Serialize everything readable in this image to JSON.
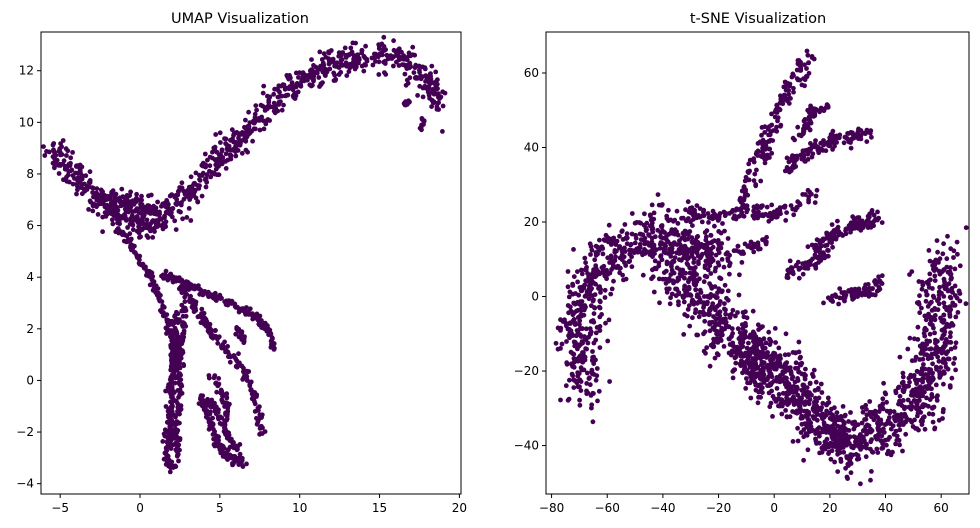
{
  "chart_data": [
    {
      "type": "scatter",
      "title": "UMAP Visualization",
      "xlim": [
        -6.2,
        20.1
      ],
      "ylim": [
        -4.4,
        13.5
      ],
      "xticks": [
        -5,
        0,
        5,
        10,
        15,
        20
      ],
      "yticks": [
        -4,
        -2,
        0,
        2,
        4,
        6,
        8,
        10,
        12
      ],
      "xtick_labels": [
        "−5",
        "0",
        "5",
        "10",
        "15",
        "20"
      ],
      "ytick_labels": [
        "−4",
        "−2",
        "0",
        "2",
        "4",
        "6",
        "8",
        "10",
        "12"
      ],
      "grid": false,
      "marker_color": "#440154",
      "series": [
        {
          "branches": [
            {
              "path": [
                [
                  -5.3,
                  8.9
                ],
                [
                  -4.2,
                  8.0
                ],
                [
                  -3.2,
                  7.5
                ],
                [
                  -2.2,
                  6.8
                ],
                [
                  -1.0,
                  6.4
                ],
                [
                  0.0,
                  6.0
                ],
                [
                  1.0,
                  6.2
                ],
                [
                  2.0,
                  6.7
                ],
                [
                  3.0,
                  7.2
                ],
                [
                  4.0,
                  7.9
                ],
                [
                  5.0,
                  8.6
                ],
                [
                  6.0,
                  9.3
                ],
                [
                  7.0,
                  9.9
                ],
                [
                  8.0,
                  10.5
                ],
                [
                  9.0,
                  11.1
                ],
                [
                  10.0,
                  11.6
                ],
                [
                  11.0,
                  11.9
                ],
                [
                  12.0,
                  12.2
                ],
                [
                  13.0,
                  12.4
                ],
                [
                  14.0,
                  12.5
                ],
                [
                  15.0,
                  12.6
                ],
                [
                  16.0,
                  12.6
                ],
                [
                  17.0,
                  12.2
                ],
                [
                  18.0,
                  11.6
                ],
                [
                  18.6,
                  10.9
                ],
                [
                  18.9,
                  10.4
                ]
              ],
              "n": 900,
              "spread": 0.3
            },
            {
              "path": [
                [
                  -2.2,
                  6.9
                ],
                [
                  -1.0,
                  6.9
                ],
                [
                  0.0,
                  6.8
                ],
                [
                  1.0,
                  6.7
                ]
              ],
              "n": 120,
              "spread": 0.2
            },
            {
              "path": [
                [
                  -1.5,
                  6.0
                ],
                [
                  -0.5,
                  5.2
                ],
                [
                  0.0,
                  4.6
                ],
                [
                  0.8,
                  3.9
                ],
                [
                  1.3,
                  3.0
                ],
                [
                  1.8,
                  2.0
                ],
                [
                  2.0,
                  1.5
                ],
                [
                  2.2,
                  0.6
                ]
              ],
              "n": 150,
              "spread": 0.08
            },
            {
              "path": [
                [
                  1.3,
                  4.1
                ],
                [
                  2.3,
                  3.9
                ],
                [
                  3.4,
                  3.6
                ],
                [
                  4.5,
                  3.3
                ],
                [
                  5.5,
                  3.0
                ],
                [
                  6.5,
                  2.7
                ],
                [
                  7.2,
                  2.5
                ],
                [
                  8.0,
                  2.0
                ],
                [
                  8.5,
                  1.2
                ]
              ],
              "n": 160,
              "spread": 0.08
            },
            {
              "path": [
                [
                  2.3,
                  3.8
                ],
                [
                  3.0,
                  3.3
                ],
                [
                  3.7,
                  2.6
                ],
                [
                  4.6,
                  1.8
                ],
                [
                  5.6,
                  1.0
                ],
                [
                  6.6,
                  0.3
                ],
                [
                  7.2,
                  -0.7
                ],
                [
                  7.5,
                  -1.5
                ],
                [
                  7.6,
                  -2.0
                ]
              ],
              "n": 170,
              "spread": 0.1
            },
            {
              "path": [
                [
                  2.3,
                  2.6
                ],
                [
                  2.2,
                  1.5
                ],
                [
                  2.1,
                  0.5
                ],
                [
                  2.0,
                  -0.8
                ],
                [
                  1.8,
                  -2.0
                ],
                [
                  1.7,
                  -2.8
                ],
                [
                  1.9,
                  -3.4
                ],
                [
                  2.1,
                  -3.5
                ]
              ],
              "n": 200,
              "spread": 0.14
            },
            {
              "path": [
                [
                  2.9,
                  3.0
                ],
                [
                  2.6,
                  1.5
                ],
                [
                  2.5,
                  0.0
                ],
                [
                  2.5,
                  -1.0
                ],
                [
                  2.2,
                  -2.0
                ],
                [
                  2.4,
                  -3.0
                ]
              ],
              "n": 120,
              "spread": 0.1
            },
            {
              "path": [
                [
                  3.8,
                  -0.6
                ],
                [
                  4.2,
                  -1.2
                ],
                [
                  4.5,
                  -1.8
                ],
                [
                  5.0,
                  -2.6
                ],
                [
                  5.6,
                  -3.0
                ],
                [
                  6.6,
                  -3.2
                ]
              ],
              "n": 130,
              "spread": 0.1
            },
            {
              "path": [
                [
                  4.3,
                  -0.8
                ],
                [
                  5.0,
                  -1.5
                ],
                [
                  5.8,
                  -2.4
                ],
                [
                  6.2,
                  -2.7
                ]
              ],
              "n": 60,
              "spread": 0.1
            },
            {
              "path": [
                [
                  4.5,
                  0.2
                ],
                [
                  5.2,
                  -0.4
                ],
                [
                  5.5,
                  -1.0
                ],
                [
                  5.4,
                  -1.6
                ]
              ],
              "n": 40,
              "spread": 0.1
            },
            {
              "path": [
                [
                  6.0,
                  2.0
                ],
                [
                  6.5,
                  1.6
                ]
              ],
              "n": 20,
              "spread": 0.08
            },
            {
              "path": [
                [
                  16.5,
                  10.7
                ],
                [
                  16.8,
                  10.8
                ]
              ],
              "n": 10,
              "spread": 0.06
            },
            {
              "path": [
                [
                  17.6,
                  9.8
                ],
                [
                  17.8,
                  10.2
                ]
              ],
              "n": 10,
              "spread": 0.06
            }
          ]
        }
      ]
    },
    {
      "type": "scatter",
      "title": "t-SNE Visualization",
      "xlim": [
        -82,
        70
      ],
      "ylim": [
        -53,
        71
      ],
      "xticks": [
        -80,
        -60,
        -40,
        -20,
        0,
        20,
        40,
        60
      ],
      "yticks": [
        -40,
        -20,
        0,
        20,
        40,
        60
      ],
      "xtick_labels": [
        "−80",
        "−60",
        "−40",
        "−20",
        "0",
        "20",
        "40",
        "60"
      ],
      "ytick_labels": [
        "−40",
        "−20",
        "0",
        "20",
        "40",
        "60"
      ],
      "grid": false,
      "marker_color": "#440154",
      "series": [
        {
          "branches": [
            {
              "path": [
                [
                  -67,
                  -26
                ],
                [
                  -70,
                  -20
                ],
                [
                  -71,
                  -10
                ],
                [
                  -68,
                  0
                ],
                [
                  -62,
                  8
                ],
                [
                  -55,
                  13
                ],
                [
                  -48,
                  16
                ],
                [
                  -40,
                  17
                ],
                [
                  -32,
                  15
                ],
                [
                  -25,
                  12
                ],
                [
                  -18,
                  8
                ]
              ],
              "n": 650,
              "spread": 3.6
            },
            {
              "path": [
                [
                  -40,
                  8
                ],
                [
                  -32,
                  4
                ],
                [
                  -25,
                  -2
                ],
                [
                  -18,
                  -8
                ],
                [
                  -10,
                  -15
                ],
                [
                  -2,
                  -20
                ],
                [
                  5,
                  -26
                ],
                [
                  12,
                  -32
                ],
                [
                  20,
                  -36
                ],
                [
                  30,
                  -38
                ],
                [
                  40,
                  -35
                ],
                [
                  50,
                  -30
                ],
                [
                  56,
                  -20
                ],
                [
                  59,
                  -8
                ],
                [
                  60,
                  0
                ],
                [
                  60,
                  10
                ]
              ],
              "n": 1300,
              "spread": 4.2
            },
            {
              "path": [
                [
                  -10,
                  -10
                ],
                [
                  -5,
                  -16
                ],
                [
                  5,
                  -22
                ],
                [
                  15,
                  -30
                ],
                [
                  22,
                  -38
                ],
                [
                  30,
                  -42
                ]
              ],
              "n": 250,
              "spread": 3.5
            },
            {
              "path": [
                [
                  -13,
                  23
                ],
                [
                  -9,
                  30
                ],
                [
                  -5,
                  38
                ],
                [
                  -1,
                  45
                ],
                [
                  3,
                  52
                ],
                [
                  7,
                  58
                ],
                [
                  11,
                  62
                ],
                [
                  14,
                  65
                ]
              ],
              "n": 160,
              "spread": 1.3
            },
            {
              "path": [
                [
                  4,
                  34
                ],
                [
                  10,
                  38
                ],
                [
                  16,
                  40
                ],
                [
                  22,
                  42
                ],
                [
                  28,
                  43
                ],
                [
                  34,
                  44
                ]
              ],
              "n": 130,
              "spread": 1.0
            },
            {
              "path": [
                [
                  -18,
                  22
                ],
                [
                  -10,
                  24
                ],
                [
                  -2,
                  22
                ],
                [
                  6,
                  24
                ],
                [
                  14,
                  27
                ]
              ],
              "n": 90,
              "spread": 1.2
            },
            {
              "path": [
                [
                  14,
                  12
                ],
                [
                  20,
                  16
                ],
                [
                  26,
                  19
                ],
                [
                  32,
                  20
                ],
                [
                  38,
                  21
                ]
              ],
              "n": 120,
              "spread": 1.0
            },
            {
              "path": [
                [
                  4,
                  6
                ],
                [
                  10,
                  8
                ],
                [
                  16,
                  10
                ],
                [
                  20,
                  12
                ]
              ],
              "n": 60,
              "spread": 0.9
            },
            {
              "path": [
                [
                  18,
                  -2
                ],
                [
                  24,
                  0
                ],
                [
                  30,
                  1
                ],
                [
                  36,
                  2
                ],
                [
                  38,
                  5
                ]
              ],
              "n": 80,
              "spread": 0.9
            },
            {
              "path": [
                [
                  8,
                  42
                ],
                [
                  12,
                  46
                ],
                [
                  14,
                  50
                ]
              ],
              "n": 40,
              "spread": 0.8
            },
            {
              "path": [
                [
                  12,
                  48
                ],
                [
                  16,
                  50
                ],
                [
                  20,
                  51
                ]
              ],
              "n": 20,
              "spread": 0.5
            },
            {
              "path": [
                [
                  -32,
                  24
                ],
                [
                  -24,
                  22
                ],
                [
                  -18,
                  21
                ]
              ],
              "n": 40,
              "spread": 1.0
            },
            {
              "path": [
                [
                  -13,
                  12
                ],
                [
                  -8,
                  14
                ],
                [
                  -2,
                  14
                ]
              ],
              "n": 30,
              "spread": 0.9
            }
          ]
        }
      ]
    }
  ]
}
